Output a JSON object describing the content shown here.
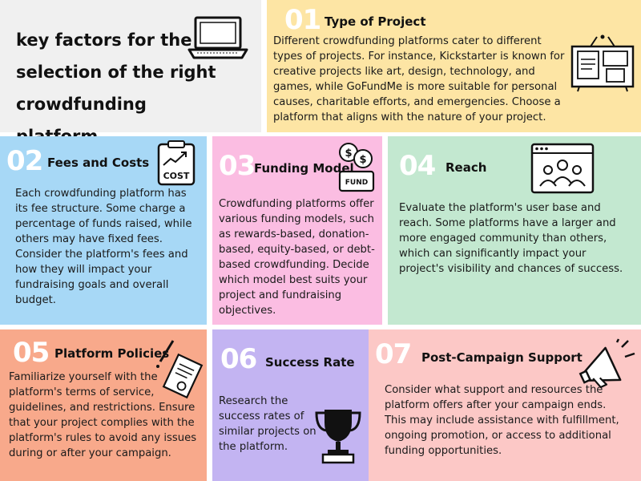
{
  "header": {
    "title": "key factors for the selection of the right crowdfunding platform",
    "icon": "laptop-icon"
  },
  "factors": [
    {
      "number": "01",
      "title": "Type of Project",
      "body": "Different crowdfunding platforms cater to different types of projects. For instance, Kickstarter is known for creative projects like art, design, technology, and games, while GoFundMe is more suitable for personal causes, charitable efforts, and emergencies. Choose a platform that aligns with the nature of your project.",
      "color": "#fde5a4",
      "icon": "bulletin-board-icon"
    },
    {
      "number": "02",
      "title": "Fees and Costs",
      "body": "Each crowdfunding platform has its fee structure. Some charge a percentage of funds raised, while others may have fixed fees. Consider the platform's fees and how they will impact your fundraising goals and overall budget.",
      "color": "#a7d8f6",
      "icon": "cost-clipboard-icon",
      "icon_label": "COST"
    },
    {
      "number": "03",
      "title": "Funding Model",
      "body": "Crowdfunding platforms offer various funding models, such as rewards-based, donation-based, equity-based, or debt-based crowdfunding. Decide which model best suits your project and fundraising objectives.",
      "color": "#fbbde2",
      "icon": "fund-box-icon",
      "icon_label": "FUND"
    },
    {
      "number": "04",
      "title": "Reach",
      "body": "Evaluate the platform's user base and reach. Some platforms have a larger and more engaged community than others, which can significantly impact your project's visibility and chances of success.",
      "color": "#c3e8d0",
      "icon": "audience-screen-icon"
    },
    {
      "number": "05",
      "title": "Platform Policies",
      "body": "Familiarize yourself with the platform's terms of service, guidelines, and restrictions. Ensure that your project complies with the platform's rules to avoid any issues during or after your campaign.",
      "color": "#f8a98b",
      "icon": "policy-document-icon"
    },
    {
      "number": "06",
      "title": "Success Rate",
      "body": "Research the success rates of similar projects on the platform.",
      "color": "#c3b4f2",
      "icon": "trophy-icon"
    },
    {
      "number": "07",
      "title": "Post-Campaign Support",
      "body": "Consider what support and resources the platform offers after your campaign ends. This may include assistance with fulfillment, ongoing promotion, or access to additional funding opportunities.",
      "color": "#fcc8c6",
      "icon": "megaphone-icon"
    }
  ]
}
